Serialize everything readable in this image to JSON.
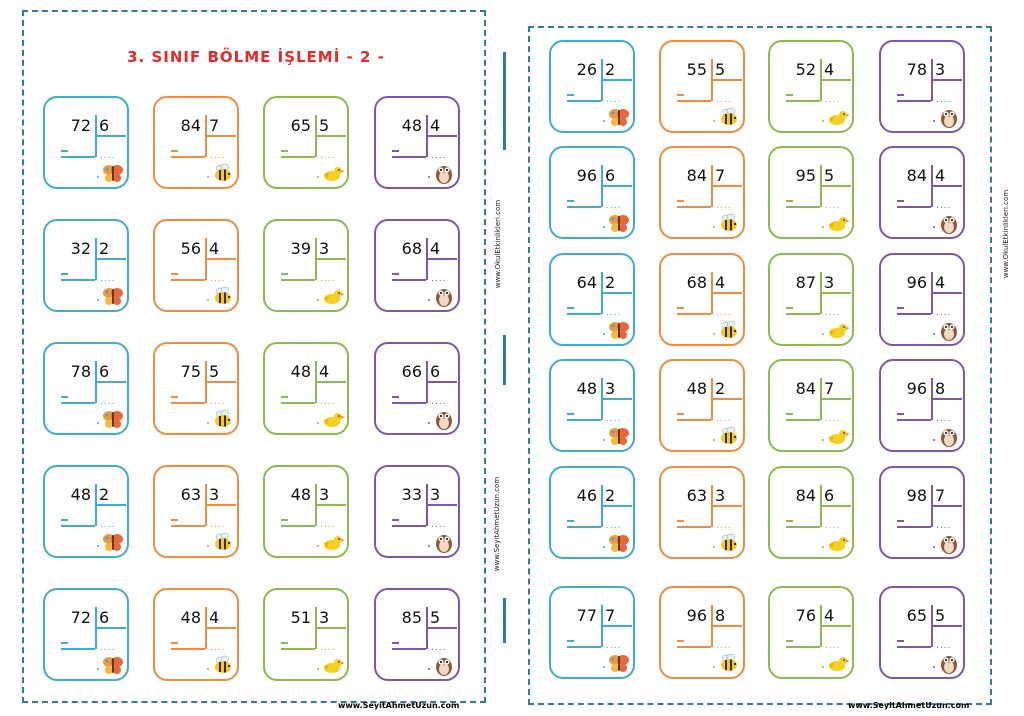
{
  "left_sheet": {
    "title": "3. SINIF BÖLME İŞLEMİ - 2 -",
    "footer": "www.SeyitAhmetUzun.com",
    "side_text_1": "www.OkulEtkinlikleri.com",
    "side_text_2": "www.SeyitAhmetUzun.com",
    "rows": [
      [
        {
          "dividend": "72",
          "divisor": "6"
        },
        {
          "dividend": "84",
          "divisor": "7"
        },
        {
          "dividend": "65",
          "divisor": "5"
        },
        {
          "dividend": "48",
          "divisor": "4"
        }
      ],
      [
        {
          "dividend": "32",
          "divisor": "2"
        },
        {
          "dividend": "56",
          "divisor": "4"
        },
        {
          "dividend": "39",
          "divisor": "3"
        },
        {
          "dividend": "68",
          "divisor": "4"
        }
      ],
      [
        {
          "dividend": "78",
          "divisor": "6"
        },
        {
          "dividend": "75",
          "divisor": "5"
        },
        {
          "dividend": "48",
          "divisor": "4"
        },
        {
          "dividend": "66",
          "divisor": "6"
        }
      ],
      [
        {
          "dividend": "48",
          "divisor": "2"
        },
        {
          "dividend": "63",
          "divisor": "3"
        },
        {
          "dividend": "48",
          "divisor": "3"
        },
        {
          "dividend": "33",
          "divisor": "3"
        }
      ],
      [
        {
          "dividend": "72",
          "divisor": "6"
        },
        {
          "dividend": "48",
          "divisor": "4"
        },
        {
          "dividend": "51",
          "divisor": "3"
        },
        {
          "dividend": "85",
          "divisor": "5"
        }
      ]
    ]
  },
  "right_sheet": {
    "footer": "www.SeyitAhmetUzun.com",
    "side_text": "www.OkulEtkinlikleri.com",
    "rows": [
      [
        {
          "dividend": "26",
          "divisor": "2"
        },
        {
          "dividend": "55",
          "divisor": "5"
        },
        {
          "dividend": "52",
          "divisor": "4"
        },
        {
          "dividend": "78",
          "divisor": "3"
        }
      ],
      [
        {
          "dividend": "96",
          "divisor": "6"
        },
        {
          "dividend": "84",
          "divisor": "7"
        },
        {
          "dividend": "95",
          "divisor": "5"
        },
        {
          "dividend": "84",
          "divisor": "4"
        }
      ],
      [
        {
          "dividend": "64",
          "divisor": "2"
        },
        {
          "dividend": "68",
          "divisor": "4"
        },
        {
          "dividend": "87",
          "divisor": "3"
        },
        {
          "dividend": "96",
          "divisor": "4"
        }
      ],
      [
        {
          "dividend": "48",
          "divisor": "3"
        },
        {
          "dividend": "48",
          "divisor": "2"
        },
        {
          "dividend": "84",
          "divisor": "7"
        },
        {
          "dividend": "96",
          "divisor": "8"
        }
      ],
      [
        {
          "dividend": "46",
          "divisor": "2"
        },
        {
          "dividend": "63",
          "divisor": "3"
        },
        {
          "dividend": "84",
          "divisor": "6"
        },
        {
          "dividend": "98",
          "divisor": "7"
        }
      ],
      [
        {
          "dividend": "77",
          "divisor": "7"
        },
        {
          "dividend": "96",
          "divisor": "8"
        },
        {
          "dividend": "76",
          "divisor": "4"
        },
        {
          "dividend": "65",
          "divisor": "5"
        }
      ]
    ]
  },
  "answer_dots": "....",
  "card_colors": [
    "#40aec6",
    "#ef8d3f",
    "#8fb84e",
    "#7e57a8"
  ],
  "mascots": [
    "butterfly-icon",
    "bee-icon",
    "bird-icon",
    "owl-icon"
  ]
}
